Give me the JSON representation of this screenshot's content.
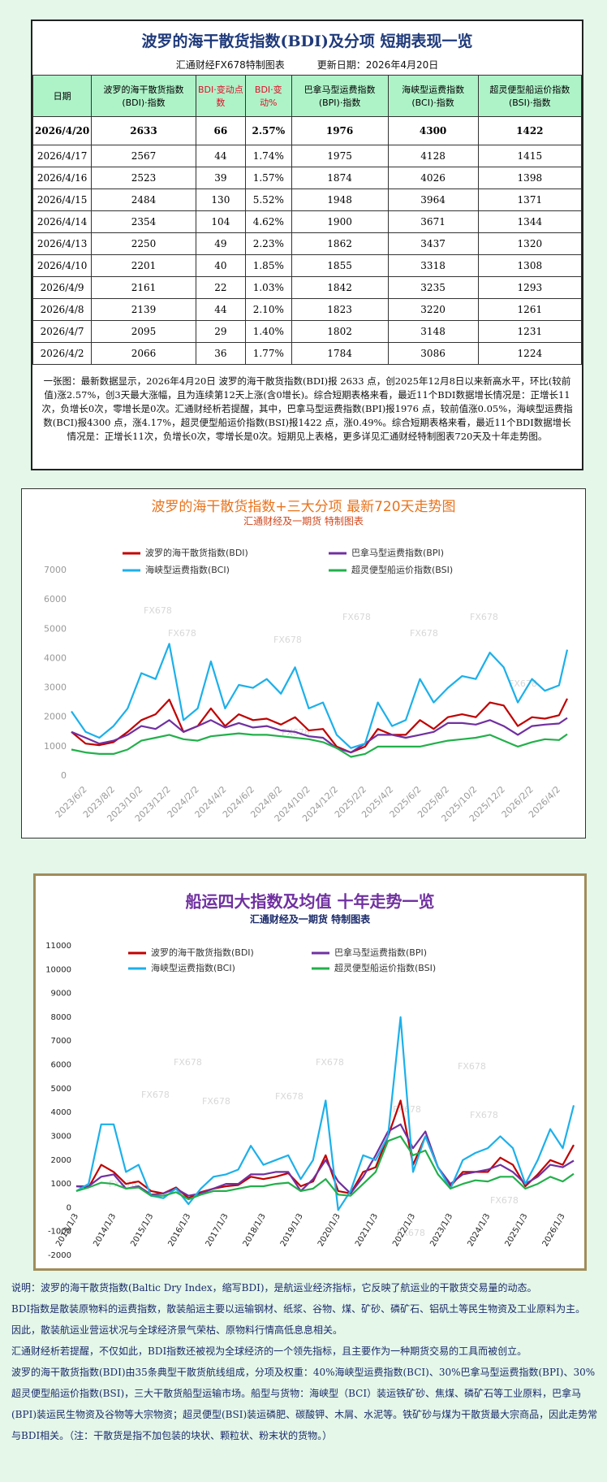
{
  "table": {
    "title": "波罗的海干散货指数(BDI)及分项  短期表现一览",
    "subtitle": "汇通财经FX678特制图表",
    "update_date": "更新日期：2026年4月20日",
    "headers": [
      "日期",
      "波罗的海干散货指数(BDI)·指数",
      "BDI·变动点数",
      "BDI·变动%",
      "巴拿马型运费指数(BPI)·指数",
      "海峡型运费指数(BCI)·指数",
      "超灵便型船运价指数(BSI)·指数"
    ],
    "rows": [
      [
        "2026/4/20",
        "2633",
        "66",
        "2.57%",
        "1976",
        "4300",
        "1422"
      ],
      [
        "2026/4/17",
        "2567",
        "44",
        "1.74%",
        "1975",
        "4128",
        "1415"
      ],
      [
        "2026/4/16",
        "2523",
        "39",
        "1.57%",
        "1874",
        "4026",
        "1398"
      ],
      [
        "2026/4/15",
        "2484",
        "130",
        "5.52%",
        "1948",
        "3964",
        "1371"
      ],
      [
        "2026/4/14",
        "2354",
        "104",
        "4.62%",
        "1900",
        "3671",
        "1344"
      ],
      [
        "2026/4/13",
        "2250",
        "49",
        "2.23%",
        "1862",
        "3437",
        "1320"
      ],
      [
        "2026/4/10",
        "2201",
        "40",
        "1.85%",
        "1855",
        "3318",
        "1308"
      ],
      [
        "2026/4/9",
        "2161",
        "22",
        "1.03%",
        "1842",
        "3235",
        "1293"
      ],
      [
        "2026/4/8",
        "2139",
        "44",
        "2.10%",
        "1823",
        "3220",
        "1261"
      ],
      [
        "2026/4/7",
        "2095",
        "29",
        "1.40%",
        "1802",
        "3148",
        "1231"
      ],
      [
        "2026/4/2",
        "2066",
        "36",
        "1.77%",
        "1784",
        "3086",
        "1224"
      ]
    ],
    "summary": "一张图：最新数据显示，2026年4月20日 波罗的海干散货指数(BDI)报 2633 点，创2025年12月8日以来新高水平，环比(较前值)涨2.57%，创3天最大涨幅，且为连续第12天上涨(含0增长)。综合短期表格来看，最近11个BDI数据增长情况是：正增长11次，负增长0次，零增长是0次。汇通财经析若提醒，其中，巴拿马型运费指数(BPI)报1976 点，较前值涨0.05%，海峡型运费指数(BCI)报4300 点，涨4.17%，超灵便型船运价指数(BSI)报1422 点，涨0.49%。综合短期表格来看，最近11个BDI数据增长情况是：正增长11次，负增长0次，零增长是0次。短期见上表格，更多详见汇通财经特制图表720天及十年走势图。"
  },
  "chart_data": [
    {
      "type": "line",
      "title": "波罗的海干散货指数+三大分项  最新720天走势图",
      "subtitle": "汇通财经及一期货  特制图表",
      "watermark": "FX678",
      "grid": false,
      "legend": "top",
      "x": [
        "2023/5/2",
        "2023/6/2",
        "2023/7/2",
        "2023/8/2",
        "2023/9/2",
        "2023/10/2",
        "2023/11/2",
        "2023/12/2",
        "2024/1/2",
        "2024/2/2",
        "2024/3/2",
        "2024/4/2",
        "2024/5/2",
        "2024/6/2",
        "2024/7/2",
        "2024/8/2",
        "2024/9/2",
        "2024/10/2",
        "2024/11/2",
        "2024/12/2",
        "2025/1/2",
        "2025/2/2",
        "2025/3/2",
        "2025/4/2",
        "2025/5/2",
        "2025/6/2",
        "2025/7/2",
        "2025/8/2",
        "2025/9/2",
        "2025/10/2",
        "2025/11/2",
        "2025/12/2",
        "2026/1/2",
        "2026/2/2",
        "2026/3/2",
        "2026/4/2",
        "2026/4/20"
      ],
      "xlim": [
        "2023/5/2",
        "2026/4/20"
      ],
      "xticks": [
        "2023/6/2",
        "2023/8/2",
        "2023/10/2",
        "2023/12/2",
        "2024/2/2",
        "2024/4/2",
        "2024/6/2",
        "2024/8/2",
        "2024/10/2",
        "2024/12/2",
        "2025/2/2",
        "2025/4/2",
        "2025/6/2",
        "2025/8/2",
        "2025/10/2",
        "2025/12/2",
        "2026/2/2",
        "2026/4/2"
      ],
      "ylim": [
        0,
        7000
      ],
      "yticks": [
        0,
        1000,
        2000,
        3000,
        4000,
        5000,
        6000,
        7000
      ],
      "series": [
        {
          "name": "波罗的海干散货指数(BDI)",
          "color": "#c00000",
          "values": [
            1500,
            1100,
            1050,
            1150,
            1500,
            1900,
            2100,
            2600,
            1500,
            1700,
            2300,
            1700,
            2100,
            1900,
            1950,
            1750,
            2000,
            1550,
            1600,
            1000,
            800,
            1000,
            1600,
            1400,
            1400,
            1900,
            1600,
            2000,
            2100,
            2000,
            2500,
            2400,
            1700,
            2000,
            1950,
            2066,
            2633
          ]
        },
        {
          "name": "巴拿马型运费指数(BPI)",
          "color": "#7030a0",
          "values": [
            1500,
            1300,
            1100,
            1200,
            1400,
            1700,
            1600,
            1900,
            1500,
            1700,
            1900,
            1650,
            1800,
            1650,
            1700,
            1550,
            1500,
            1350,
            1300,
            950,
            800,
            1100,
            1400,
            1400,
            1300,
            1400,
            1500,
            1800,
            1800,
            1750,
            1900,
            1700,
            1400,
            1700,
            1750,
            1784,
            1976
          ]
        },
        {
          "name": "海峡型运费指数(BCI)",
          "color": "#1cb0ea",
          "values": [
            2200,
            1500,
            1300,
            1700,
            2300,
            3500,
            3300,
            4500,
            1900,
            2300,
            3900,
            2300,
            3100,
            3000,
            3300,
            2800,
            3700,
            2300,
            2500,
            1400,
            950,
            1100,
            2500,
            1700,
            1900,
            3300,
            2500,
            3000,
            3400,
            3300,
            4200,
            3700,
            2500,
            3300,
            2900,
            3086,
            4300
          ]
        },
        {
          "name": "超灵便型船运价指数(BSI)",
          "color": "#22b04b",
          "values": [
            900,
            800,
            750,
            750,
            900,
            1200,
            1300,
            1400,
            1250,
            1200,
            1350,
            1400,
            1450,
            1400,
            1400,
            1350,
            1300,
            1250,
            1150,
            950,
            650,
            750,
            1000,
            1000,
            1000,
            1000,
            1100,
            1200,
            1250,
            1300,
            1400,
            1200,
            1000,
            1150,
            1250,
            1224,
            1422
          ]
        }
      ]
    },
    {
      "type": "line",
      "title": "船运四大指数及均值 十年走势一览",
      "subtitle": "汇通财经及一期货 特制图表",
      "watermark": "FX678",
      "grid": false,
      "legend": "top",
      "x": [
        "2013/1/3",
        "2013/5/3",
        "2013/9/3",
        "2014/1/3",
        "2014/5/3",
        "2014/9/3",
        "2015/1/3",
        "2015/5/3",
        "2015/9/3",
        "2016/1/3",
        "2016/5/3",
        "2016/9/3",
        "2017/1/3",
        "2017/5/3",
        "2017/9/3",
        "2018/1/3",
        "2018/5/3",
        "2018/9/3",
        "2019/1/3",
        "2019/5/3",
        "2019/9/3",
        "2020/1/3",
        "2020/5/3",
        "2020/9/3",
        "2021/1/3",
        "2021/5/3",
        "2021/9/3",
        "2022/1/3",
        "2022/5/3",
        "2022/9/3",
        "2023/1/3",
        "2023/5/3",
        "2023/9/3",
        "2024/1/3",
        "2024/5/3",
        "2024/9/3",
        "2025/1/3",
        "2025/5/3",
        "2025/9/3",
        "2026/1/3",
        "2026/4/20"
      ],
      "xlim": [
        "2013/1/3",
        "2026/4/20"
      ],
      "xticks": [
        "2013/1/3",
        "2014/1/3",
        "2015/1/3",
        "2016/1/3",
        "2017/1/3",
        "2018/1/3",
        "2019/1/3",
        "2020/1/3",
        "2021/1/3",
        "2022/1/3",
        "2023/1/3",
        "2024/1/3",
        "2025/1/3",
        "2026/1/3"
      ],
      "ylim": [
        -2000,
        11000
      ],
      "yticks": [
        -2000,
        -1000,
        0,
        1000,
        2000,
        3000,
        4000,
        5000,
        6000,
        7000,
        8000,
        9000,
        10000,
        11000
      ],
      "series": [
        {
          "name": "波罗的海干散货指数(BDI)",
          "color": "#c00000",
          "values": [
            900,
            850,
            1800,
            1500,
            1000,
            1100,
            700,
            600,
            850,
            400,
            650,
            800,
            900,
            950,
            1300,
            1200,
            1300,
            1450,
            900,
            1100,
            2200,
            700,
            600,
            1500,
            1700,
            3000,
            4500,
            1800,
            3000,
            1700,
            900,
            1500,
            1500,
            1500,
            2100,
            1800,
            900,
            1400,
            2000,
            1800,
            2633
          ]
        },
        {
          "name": "巴拿马型运费指数(BPI)",
          "color": "#7030a0",
          "values": [
            900,
            900,
            1300,
            1400,
            800,
            900,
            550,
            600,
            800,
            500,
            600,
            800,
            1000,
            1000,
            1400,
            1400,
            1500,
            1500,
            700,
            1200,
            2000,
            1100,
            600,
            1300,
            2200,
            3200,
            3500,
            2500,
            3200,
            1700,
            1000,
            1400,
            1500,
            1600,
            1800,
            1500,
            1000,
            1300,
            1800,
            1700,
            1976
          ]
        },
        {
          "name": "海峡型运费指数(BCI)",
          "color": "#1cb0ea",
          "values": [
            700,
            1000,
            3500,
            3500,
            1500,
            1800,
            500,
            400,
            800,
            150,
            800,
            1300,
            1400,
            1600,
            2600,
            1800,
            2000,
            2200,
            1200,
            2000,
            4500,
            -100,
            700,
            2200,
            2000,
            3000,
            8000,
            1500,
            3000,
            1700,
            800,
            2000,
            2300,
            2500,
            3000,
            2500,
            1000,
            2000,
            3300,
            2500,
            4300
          ]
        },
        {
          "name": "超灵便型船运价指数(BSI)",
          "color": "#22b04b",
          "values": [
            700,
            850,
            1050,
            1000,
            800,
            850,
            500,
            500,
            650,
            350,
            550,
            700,
            700,
            800,
            900,
            900,
            1000,
            1050,
            700,
            800,
            1200,
            550,
            500,
            1000,
            1500,
            2800,
            3000,
            2200,
            2400,
            1400,
            800,
            1000,
            1150,
            1100,
            1300,
            1300,
            800,
            1000,
            1300,
            1100,
            1422
          ]
        }
      ]
    }
  ],
  "notes": [
    "说明：波罗的海干散货指数(Baltic Dry Index，缩写BDI)，是航运业经济指标，它反映了航运业的干散货交易量的动态。",
    "BDI指数是散装原物料的运费指数，散装船运主要以运输钢材、纸浆、谷物、煤、矿砂、磷矿石、铝矾土等民生物资及工业原料为主。",
    "因此，散装航运业营运状况与全球经济景气荣枯、原物料行情高低息息相关。",
    "汇通财经析若提醒，不仅如此，BDI指数还被视为全球经济的一个领先指标，且主要作为一种期货交易的工具而被创立。",
    "波罗的海干散货指数(BDI)由35条典型干散货航线组成，分项及权重：40%海峡型运费指数(BCI)、30%巴拿马型运费指数(BPI)、30%超灵便型船运价指数(BSI)，三大干散货船型运输市场。船型与货物：海峡型（BCI）装运铁矿砂、焦煤、磷矿石等工业原料，巴拿马(BPI)装运民生物资及谷物等大宗物资；超灵便型(BSI)装运磷肥、碳酸钾、木屑、水泥等。铁矿砂与煤为干散货最大宗商品，因此走势常与BDI相关。（注：干散货是指不加包装的块状、颗粒状、粉末状的货物。）"
  ]
}
